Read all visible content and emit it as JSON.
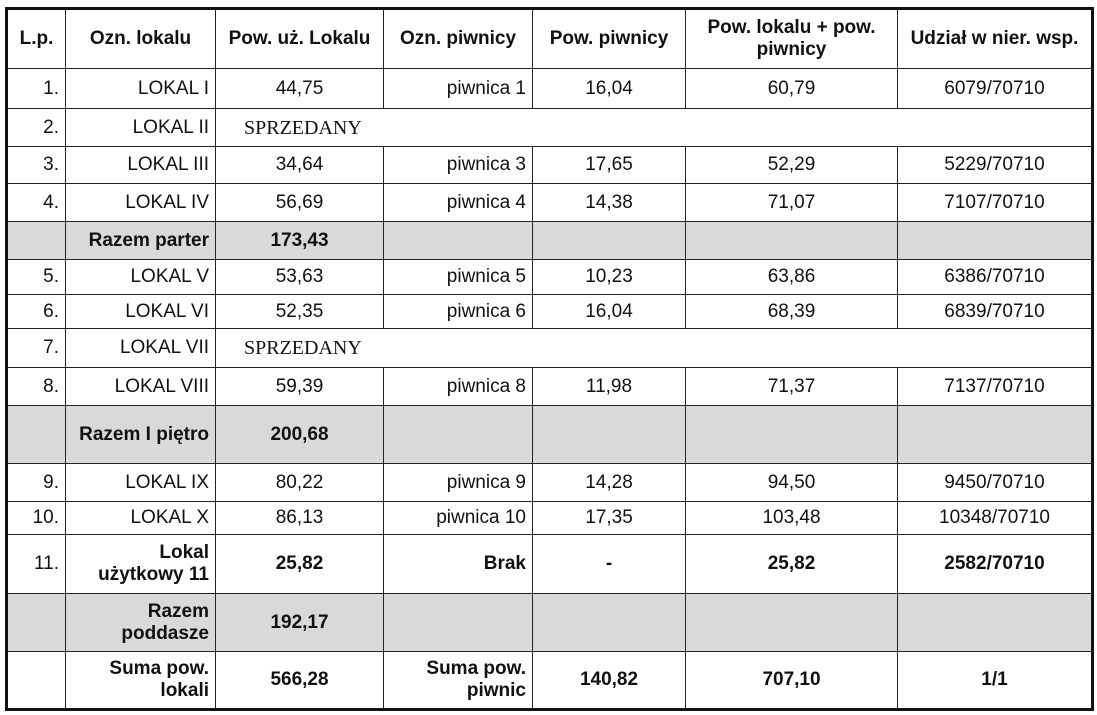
{
  "headers": [
    "L.p.",
    "Ozn. lokalu",
    "Pow. uż. Lokalu",
    "Ozn. piwnicy",
    "Pow. piwnicy",
    "Pow. lokalu + pow. piwnicy",
    "Udział w nier. wsp."
  ],
  "rows": [
    {
      "lp": "1.",
      "lokal": "LOKAL I",
      "pow": "44,75",
      "piwnica": "piwnica 1",
      "pow_piwnicy": "16,04",
      "suma": "60,79",
      "udzial": "6079/70710"
    },
    {
      "lp": "2.",
      "lokal": "LOKAL II",
      "status": "SPRZEDANY"
    },
    {
      "lp": "3.",
      "lokal": "LOKAL III",
      "pow": "34,64",
      "piwnica": "piwnica 3",
      "pow_piwnicy": "17,65",
      "suma": "52,29",
      "udzial": "5229/70710"
    },
    {
      "lp": "4.",
      "lokal": "LOKAL IV",
      "pow": "56,69",
      "piwnica": "piwnica 4",
      "pow_piwnicy": "14,38",
      "suma": "71,07",
      "udzial": "7107/70710"
    },
    {
      "subtotal": true,
      "lokal": "Razem parter",
      "pow": "173,43"
    },
    {
      "lp": "5.",
      "lokal": "LOKAL V",
      "pow": "53,63",
      "piwnica": "piwnica 5",
      "pow_piwnicy": "10,23",
      "suma": "63,86",
      "udzial": "6386/70710"
    },
    {
      "lp": "6.",
      "lokal": "LOKAL VI",
      "pow": "52,35",
      "piwnica": "piwnica 6",
      "pow_piwnicy": "16,04",
      "suma": "68,39",
      "udzial": "6839/70710"
    },
    {
      "lp": "7.",
      "lokal": "LOKAL VII",
      "status": "SPRZEDANY"
    },
    {
      "lp": "8.",
      "lokal": "LOKAL VIII",
      "pow": "59,39",
      "piwnica": "piwnica 8",
      "pow_piwnicy": "11,98",
      "suma": "71,37",
      "udzial": "7137/70710"
    },
    {
      "subtotal": true,
      "lokal": "Razem I piętro",
      "pow": "200,68"
    },
    {
      "lp": "9.",
      "lokal": "LOKAL IX",
      "pow": "80,22",
      "piwnica": "piwnica 9",
      "pow_piwnicy": "14,28",
      "suma": "94,50",
      "udzial": "9450/70710"
    },
    {
      "lp": "10.",
      "lokal": "LOKAL X",
      "pow": "86,13",
      "piwnica": "piwnica 10",
      "pow_piwnicy": "17,35",
      "suma": "103,48",
      "udzial": "10348/70710"
    },
    {
      "lp": "11.",
      "lokal": "Lokal użytkowy 11",
      "pow": "25,82",
      "piwnica": "Brak",
      "pow_piwnicy": "-",
      "suma": "25,82",
      "udzial": "2582/70710",
      "bold": true
    },
    {
      "subtotal": true,
      "lokal": "Razem poddasze",
      "pow": "192,17"
    }
  ],
  "total": {
    "label_lokale": "Suma pow. lokali",
    "pow": "566,28",
    "label_piwnice": "Suma pow. piwnic",
    "pow_piwnicy": "140,82",
    "suma": "707,10",
    "udzial": "1/1"
  },
  "colors": {
    "subtotal_bg": "#d9d9d9",
    "border": "#111111"
  }
}
